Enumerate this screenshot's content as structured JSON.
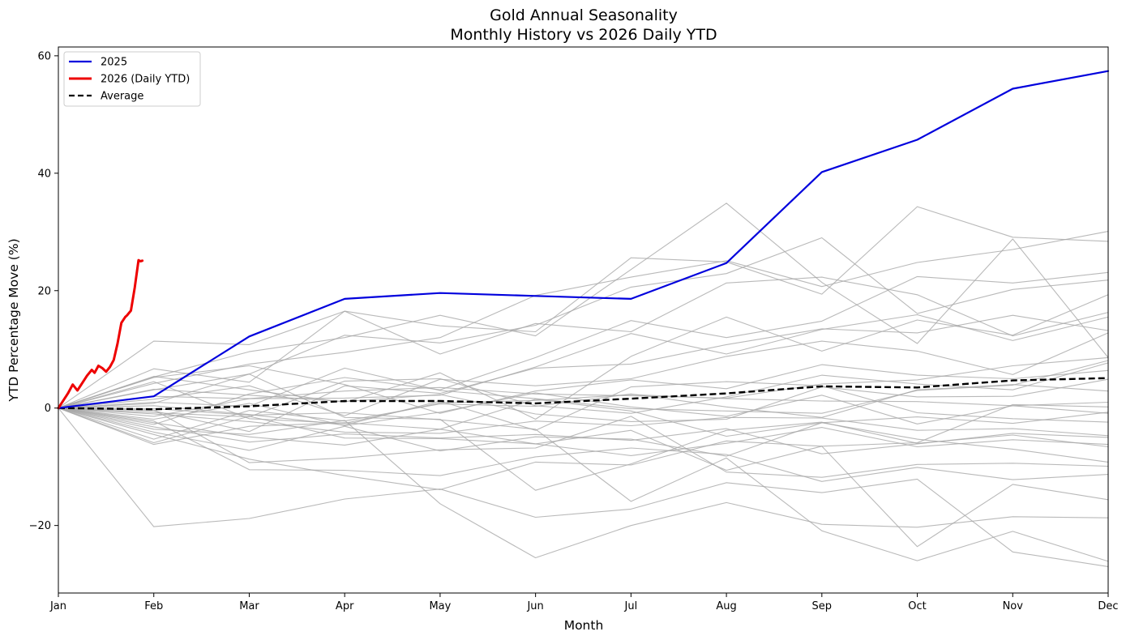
{
  "chart_data": {
    "type": "line",
    "title": "Gold Annual Seasonality",
    "subtitle": "Monthly History vs 2026 Daily YTD",
    "xlabel": "Month",
    "ylabel": "YTD Percentage Move (%)",
    "categories": [
      "Jan",
      "Feb",
      "Mar",
      "Apr",
      "May",
      "Jun",
      "Jul",
      "Aug",
      "Sep",
      "Oct",
      "Nov",
      "Dec"
    ],
    "xlim": [
      0,
      11
    ],
    "ylim": [
      -31.5,
      61.5
    ],
    "yticks": [
      -20,
      0,
      20,
      40,
      60
    ],
    "ytick_labels": [
      "−20",
      "0",
      "20",
      "40",
      "60"
    ],
    "grid": false,
    "legend_position": "top-left",
    "legend": [
      "2025",
      "2026 (Daily YTD)",
      "Average"
    ],
    "colors": {
      "2025": "#0000dd",
      "2026": "#ee0000",
      "average": "#000000",
      "history": "#a8a8a8"
    },
    "series": [
      {
        "name": "2025",
        "x": [
          0,
          1,
          2,
          3,
          4,
          5,
          6,
          7,
          8,
          9,
          10,
          11
        ],
        "values": [
          0,
          2.0,
          12.2,
          18.6,
          19.6,
          19.1,
          18.6,
          24.7,
          40.2,
          45.7,
          54.4,
          57.4
        ]
      },
      {
        "name": "2026 (Daily YTD)",
        "x": [
          0,
          0.06,
          0.1,
          0.15,
          0.2,
          0.26,
          0.3,
          0.35,
          0.38,
          0.42,
          0.46,
          0.5,
          0.54,
          0.58,
          0.62,
          0.66,
          0.7,
          0.72,
          0.74,
          0.76,
          0.8,
          0.84,
          0.86,
          0.88
        ],
        "values": [
          0,
          1.5,
          2.5,
          4.0,
          3.0,
          4.5,
          5.5,
          6.5,
          6.0,
          7.2,
          6.8,
          6.2,
          7.0,
          8.2,
          11.0,
          14.5,
          15.5,
          15.8,
          16.2,
          16.6,
          20.5,
          25.2,
          25.0,
          25.1
        ]
      },
      {
        "name": "Average",
        "x": [
          0,
          1,
          2,
          3,
          4,
          5,
          6,
          7,
          8,
          9,
          10,
          11
        ],
        "values": [
          0,
          -0.2,
          0.3,
          1.2,
          1.2,
          0.8,
          1.6,
          2.5,
          3.7,
          3.5,
          4.7,
          5.1
        ]
      }
    ],
    "history_series": [
      [
        0,
        11.4,
        10.8,
        16.5,
        9.2,
        14.4,
        13.0,
        21.3,
        22.3,
        19.3,
        12.3,
        16.3
      ],
      [
        0,
        5.3,
        9.6,
        12.0,
        15.8,
        12.3,
        23.6,
        34.9,
        21.4,
        11.0,
        28.8,
        8.6
      ],
      [
        0,
        6.7,
        4.4,
        16.5,
        14.0,
        13.0,
        25.6,
        24.9,
        19.4,
        34.3,
        29.1,
        28.4
      ],
      [
        0,
        4.2,
        7.5,
        9.5,
        12.0,
        19.2,
        22.3,
        25.1,
        20.7,
        24.8,
        27.0,
        30.1
      ],
      [
        0,
        3.1,
        5.8,
        12.4,
        11.1,
        14.1,
        20.6,
        22.9,
        29.0,
        16.1,
        20.2,
        21.8
      ],
      [
        0,
        -2.8,
        2.4,
        5.2,
        3.1,
        8.6,
        14.9,
        12.0,
        14.8,
        22.4,
        21.3,
        23.1
      ],
      [
        0,
        5.4,
        3.1,
        1.0,
        6.0,
        -1.9,
        8.8,
        15.5,
        9.7,
        15.0,
        12.4,
        19.3
      ],
      [
        0,
        2.0,
        1.6,
        1.7,
        2.2,
        7.0,
        12.7,
        9.2,
        13.4,
        15.9,
        11.5,
        15.5
      ],
      [
        0,
        -0.5,
        -4.0,
        3.8,
        2.5,
        6.8,
        7.5,
        10.8,
        13.5,
        12.8,
        15.8,
        13.2
      ],
      [
        0,
        1.5,
        3.8,
        -1.3,
        4.9,
        3.8,
        5.0,
        8.8,
        11.4,
        9.7,
        5.7,
        12.8
      ],
      [
        0,
        5.2,
        7.2,
        4.0,
        -0.9,
        2.9,
        4.8,
        3.3,
        7.4,
        5.6,
        5.0,
        6.4
      ],
      [
        0,
        -1.4,
        1.6,
        2.9,
        3.5,
        2.4,
        2.1,
        1.7,
        4.1,
        4.8,
        7.2,
        8.6
      ],
      [
        0,
        -0.8,
        -1.5,
        4.6,
        5.0,
        0.4,
        -0.9,
        1.9,
        5.6,
        4.1,
        3.1,
        7.7
      ],
      [
        0,
        3.2,
        2.2,
        1.1,
        2.3,
        -1.0,
        -2.3,
        -1.9,
        3.6,
        1.9,
        2.0,
        4.9
      ],
      [
        0,
        -5.3,
        -0.4,
        -2.2,
        0.7,
        0.3,
        2.4,
        0.2,
        -1.6,
        3.1,
        4.0,
        2.9
      ],
      [
        0,
        -1.9,
        0.8,
        -3.0,
        -0.7,
        2.6,
        0.2,
        -1.4,
        2.2,
        -2.7,
        0.4,
        1.0
      ],
      [
        0,
        -6.2,
        -3.1,
        -2.5,
        -3.6,
        1.5,
        -0.5,
        -4.8,
        -2.5,
        -1.5,
        -2.6,
        -0.7
      ],
      [
        0,
        0.4,
        -1.1,
        -2.9,
        1.2,
        -3.8,
        3.6,
        4.5,
        3.8,
        -0.8,
        -1.8,
        -2.4
      ],
      [
        0,
        -1.0,
        -2.3,
        -4.1,
        -4.3,
        -2.2,
        -3.0,
        -1.6,
        -1.7,
        -3.8,
        -3.5,
        -4.7
      ],
      [
        0,
        -3.2,
        -5.8,
        -4.4,
        -5.1,
        -4.5,
        -5.5,
        -3.5,
        -7.8,
        -6.1,
        -4.3,
        -5.0
      ],
      [
        0,
        -2.5,
        -4.9,
        -6.3,
        -3.6,
        -6.1,
        -8.1,
        -6.0,
        -3.3,
        -6.6,
        -5.4,
        -6.2
      ],
      [
        0,
        -4.1,
        -7.2,
        -3.1,
        -7.3,
        -4.9,
        -5.3,
        -8.2,
        -2.5,
        -5.3,
        -7.0,
        -9.2
      ],
      [
        0,
        -0.3,
        -9.3,
        -8.5,
        -7.1,
        -6.8,
        -1.4,
        -10.9,
        -11.8,
        -9.6,
        -9.4,
        -9.9
      ],
      [
        0,
        -2.2,
        -10.5,
        -10.6,
        -11.5,
        -8.3,
        -6.8,
        -7.9,
        -12.5,
        -10.1,
        -12.2,
        -11.3
      ],
      [
        0,
        -4.5,
        -8.7,
        -11.5,
        -13.9,
        -9.2,
        -9.7,
        -5.6,
        -6.5,
        -23.6,
        -13.0,
        -15.6
      ],
      [
        0,
        -20.2,
        -18.8,
        -15.5,
        -13.8,
        -18.6,
        -17.2,
        -12.7,
        -14.4,
        -12.1,
        -24.5,
        -27.0
      ],
      [
        0,
        -3.6,
        -4.5,
        -2.1,
        -16.3,
        -25.5,
        -20.0,
        -16.1,
        -19.8,
        -20.3,
        -18.5,
        -18.7
      ],
      [
        0,
        -0.1,
        -1.2,
        -0.8,
        -2.0,
        -3.6,
        -15.9,
        -8.5,
        -20.9,
        -26.0,
        -21.0,
        -26.1
      ],
      [
        0,
        0.8,
        5.8,
        -1.6,
        -1.9,
        -14.0,
        -9.5,
        -3.8,
        -2.4,
        -6.0,
        -4.6,
        -6.6
      ],
      [
        0,
        -5.9,
        -1.4,
        -5.1,
        -5.2,
        -6.1,
        -3.8,
        -10.6,
        -6.5,
        -5.9,
        0.6,
        0.2
      ],
      [
        0,
        1.0,
        0.3,
        6.8,
        3.0,
        1.6,
        -0.1,
        -0.5,
        -0.9,
        3.0,
        3.9,
        8.1
      ],
      [
        0,
        4.5,
        -1.8,
        -2.6,
        0.9,
        1.3,
        2.3,
        1.6,
        1.2,
        1.1,
        0.4,
        -0.9
      ]
    ]
  }
}
